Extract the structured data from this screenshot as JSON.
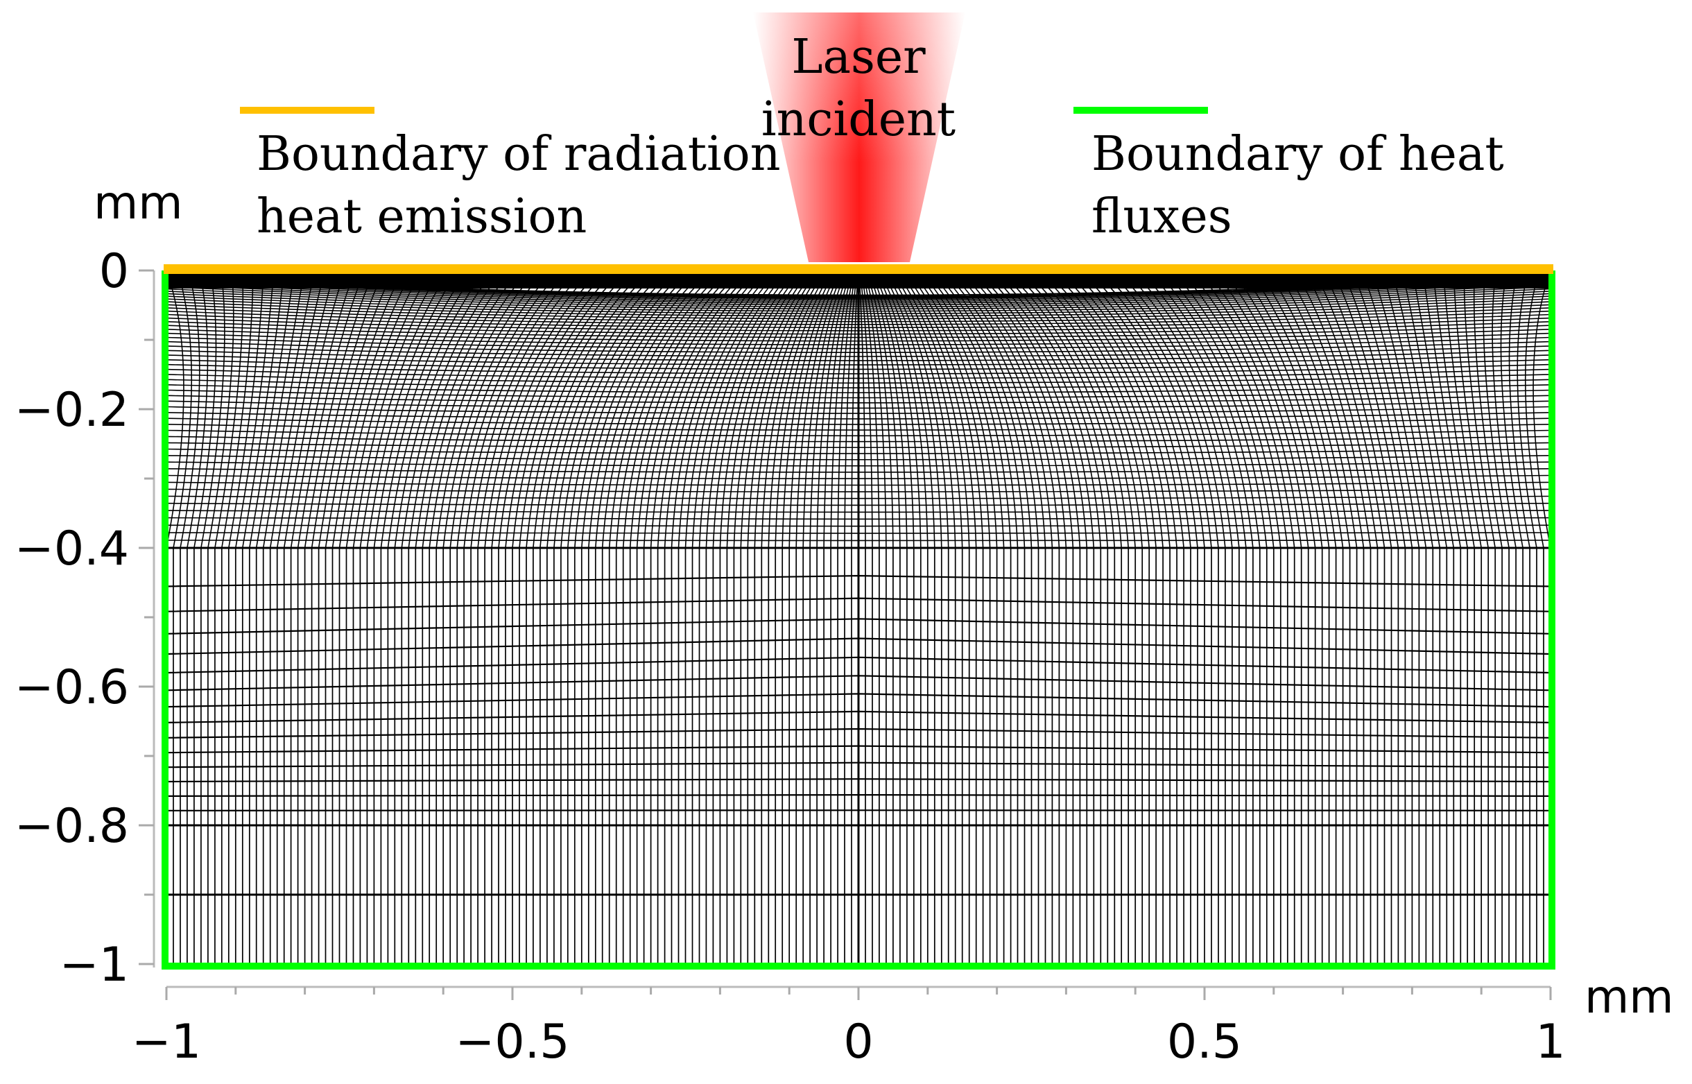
{
  "chart_data": {
    "type": "mesh",
    "title": "",
    "xlabel": "mm",
    "ylabel": "mm",
    "xlim": [
      -1,
      1
    ],
    "ylim": [
      -1,
      0
    ],
    "x_ticks": [
      -1,
      -0.5,
      0,
      0.5,
      1
    ],
    "x_tick_labels": [
      "−1",
      "−0.5",
      "0",
      "0.5",
      "1"
    ],
    "y_ticks": [
      0,
      -0.2,
      -0.4,
      -0.6,
      -0.8,
      -1
    ],
    "y_tick_labels": [
      "0",
      "−0.2",
      "−0.4",
      "−0.6",
      "−0.8",
      "−1"
    ],
    "y_minor_step": 0.1,
    "x_minor_step": 0.1,
    "fine_mesh_region": {
      "y_top": 0,
      "y_bottom": -0.4
    },
    "coarse_mesh_region": {
      "y_top": -0.4,
      "y_bottom": -1
    },
    "coarse_horizontal_lines": [
      -0.4,
      -0.8,
      -0.9,
      -1.0
    ],
    "coarse_vertical_count": 200,
    "fine_vertical_count": 200,
    "fine_layer_count": 60,
    "laser_center_x": 0,
    "laser": {
      "label_line1": "Laser",
      "label_line2": "incident",
      "color": "#ff0000"
    },
    "boundaries": [
      {
        "name": "radiation",
        "label_line1": "Boundary of radiation",
        "label_line2": "heat emission",
        "color": "#ffc000",
        "edge": "top"
      },
      {
        "name": "heat-flux",
        "label_line1": "Boundary of heat",
        "label_line2": "fluxes",
        "color": "#00ff00",
        "edge": "left-right-bottom"
      }
    ]
  }
}
